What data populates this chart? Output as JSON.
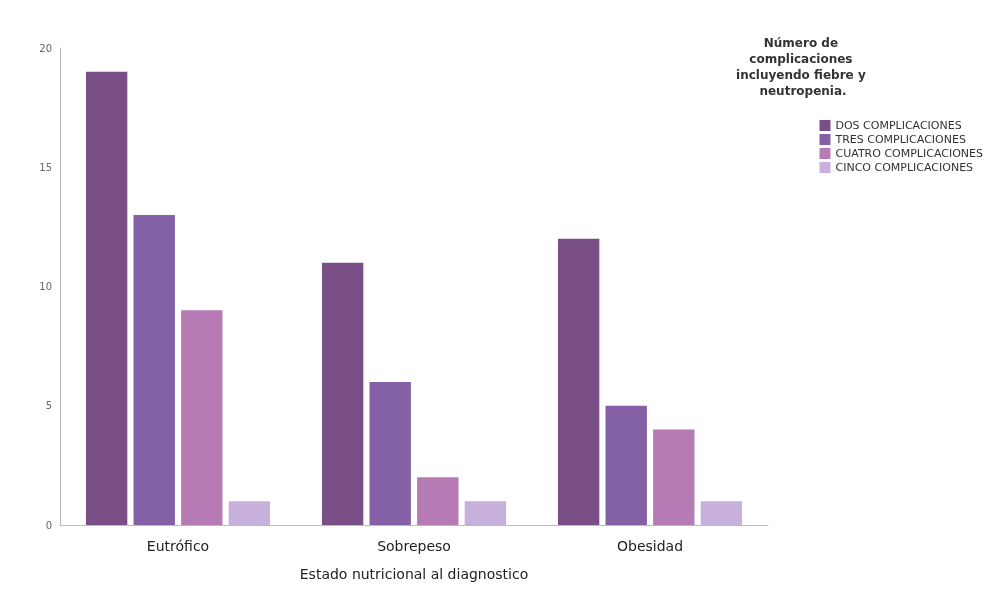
{
  "chart_data": {
    "type": "bar",
    "xlabel": "Estado nutricional al diagnostico",
    "legend_title": "Número de complicaciones incluyendo fiebre y neutropenia.",
    "categories": [
      "Eutrófico",
      "Sobrepeso",
      "Obesidad"
    ],
    "series": [
      {
        "name": "DOS COMPLICACIONES",
        "color": "#7a4f88",
        "values": [
          19,
          11,
          12
        ]
      },
      {
        "name": "TRES COMPLICACIONES",
        "color": "#8460a6",
        "values": [
          13,
          6,
          5
        ]
      },
      {
        "name": "CUATRO COMPLICACIONES",
        "color": "#b67ab4",
        "values": [
          9,
          2,
          4
        ]
      },
      {
        "name": "CINCO COMPLICACIONES",
        "color": "#c7b0db",
        "values": [
          1,
          1,
          1
        ]
      }
    ],
    "ylim": [
      0,
      20
    ],
    "yticks": [
      0,
      5,
      10,
      15,
      20
    ],
    "grid": false,
    "legend": "top right"
  }
}
